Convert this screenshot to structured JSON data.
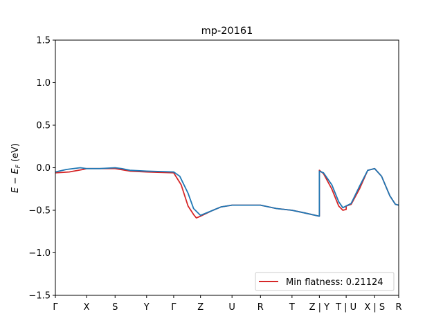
{
  "chart_data": {
    "type": "line",
    "title": "mp-20161",
    "ylabel_parts": [
      "E",
      " − ",
      "E",
      "F",
      " (eV)"
    ],
    "ylim": [
      -1.5,
      1.5
    ],
    "yticks": [
      -1.5,
      -1.0,
      -0.5,
      0.0,
      0.5,
      1.0,
      1.5
    ],
    "ytick_labels": [
      "−1.5",
      "−1.0",
      "−0.5",
      "0.0",
      "0.5",
      "1.0",
      "1.5"
    ],
    "xlim": [
      0,
      12.42
    ],
    "kpoints": [
      {
        "label": "Γ",
        "x": 0.0
      },
      {
        "label": "X",
        "x": 1.13
      },
      {
        "label": "S",
        "x": 2.16
      },
      {
        "label": "Y",
        "x": 3.3
      },
      {
        "label": "Γ",
        "x": 4.28
      },
      {
        "label": "Z",
        "x": 5.25
      },
      {
        "label": "U",
        "x": 6.39
      },
      {
        "label": "R",
        "x": 7.42
      },
      {
        "label": "T",
        "x": 8.56
      },
      {
        "label": "Z | Y",
        "x": 9.55
      },
      {
        "label": "T | U",
        "x": 10.52
      },
      {
        "label": "X | S",
        "x": 11.55
      },
      {
        "label": "R",
        "x": 12.42
      }
    ],
    "legend": {
      "location": "lower-right",
      "entry": "Min flatness: 0.21124",
      "color": "#d62728"
    },
    "series": [
      {
        "color": "#d62728",
        "points": [
          [
            0.0,
            -0.06
          ],
          [
            0.5,
            -0.05
          ],
          [
            1.0,
            -0.02
          ],
          [
            1.13,
            -0.01
          ],
          [
            1.6,
            -0.01
          ],
          [
            2.16,
            -0.01
          ],
          [
            2.7,
            -0.04
          ],
          [
            3.3,
            -0.05
          ],
          [
            3.8,
            -0.055
          ],
          [
            4.28,
            -0.06
          ],
          [
            4.55,
            -0.2
          ],
          [
            4.8,
            -0.45
          ],
          [
            5.0,
            -0.55
          ],
          [
            5.1,
            -0.59
          ],
          [
            5.25,
            -0.57
          ],
          [
            5.7,
            -0.5
          ],
          [
            6.0,
            -0.46
          ],
          [
            6.39,
            -0.44
          ],
          [
            7.0,
            -0.44
          ],
          [
            7.42,
            -0.44
          ],
          [
            8.0,
            -0.48
          ],
          [
            8.56,
            -0.5
          ],
          [
            9.0,
            -0.53
          ],
          [
            9.55,
            -0.57
          ],
          [
            9.55,
            -0.03
          ],
          [
            9.7,
            -0.07
          ],
          [
            10.0,
            -0.25
          ],
          [
            10.25,
            -0.45
          ],
          [
            10.4,
            -0.5
          ],
          [
            10.52,
            -0.49
          ],
          [
            10.52,
            -0.45
          ],
          [
            10.7,
            -0.43
          ],
          [
            11.0,
            -0.25
          ],
          [
            11.3,
            -0.03
          ],
          [
            11.55,
            -0.01
          ],
          [
            11.8,
            -0.1
          ],
          [
            12.1,
            -0.33
          ],
          [
            12.3,
            -0.43
          ],
          [
            12.42,
            -0.44
          ]
        ]
      },
      {
        "color": "#1f77b4",
        "points": [
          [
            0.0,
            -0.05
          ],
          [
            0.4,
            -0.02
          ],
          [
            0.9,
            0.0
          ],
          [
            1.13,
            -0.01
          ],
          [
            1.6,
            -0.01
          ],
          [
            2.16,
            0.0
          ],
          [
            2.4,
            -0.01
          ],
          [
            2.7,
            -0.03
          ],
          [
            3.3,
            -0.04
          ],
          [
            3.8,
            -0.045
          ],
          [
            4.28,
            -0.05
          ],
          [
            4.5,
            -0.1
          ],
          [
            4.8,
            -0.3
          ],
          [
            5.0,
            -0.48
          ],
          [
            5.25,
            -0.56
          ],
          [
            5.7,
            -0.5
          ],
          [
            6.0,
            -0.46
          ],
          [
            6.39,
            -0.44
          ],
          [
            7.0,
            -0.44
          ],
          [
            7.42,
            -0.44
          ],
          [
            8.0,
            -0.48
          ],
          [
            8.56,
            -0.5
          ],
          [
            9.0,
            -0.53
          ],
          [
            9.55,
            -0.57
          ],
          [
            9.55,
            -0.04
          ],
          [
            9.7,
            -0.06
          ],
          [
            10.0,
            -0.2
          ],
          [
            10.25,
            -0.4
          ],
          [
            10.4,
            -0.47
          ],
          [
            10.52,
            -0.45
          ],
          [
            10.7,
            -0.42
          ],
          [
            11.0,
            -0.22
          ],
          [
            11.3,
            -0.03
          ],
          [
            11.55,
            -0.01
          ],
          [
            11.8,
            -0.1
          ],
          [
            12.1,
            -0.33
          ],
          [
            12.3,
            -0.43
          ],
          [
            12.42,
            -0.44
          ]
        ]
      }
    ]
  }
}
